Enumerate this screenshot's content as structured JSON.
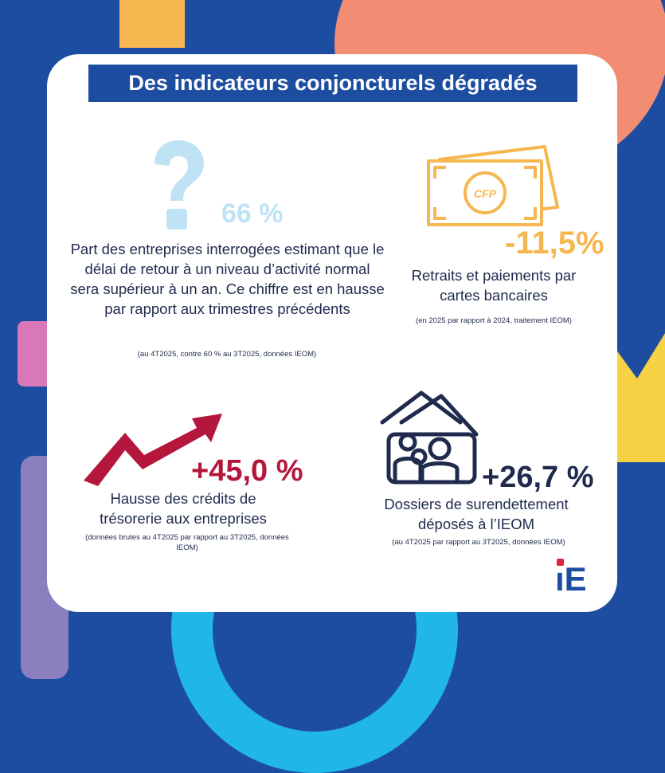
{
  "title": "Des indicateurs conjoncturels dégradés",
  "indicators": [
    {
      "value": "66 %",
      "description": "Part des entreprises interrogées estimant que le délai de retour à un niveau d’activité normal sera supérieur à un an. Ce chiffre est en hausse par rapport aux trimestres précédents",
      "note": "(au 4T2025, contre 60 % au 3T2025, données IEOM)",
      "icon": "question-mark-icon",
      "color": "#bfe3f5"
    },
    {
      "value": "-11,5%",
      "description": "Retraits et paiements par cartes bancaires",
      "note": "(en 2025 par rapport à 2024, traitement IEOM)",
      "icon": "banknote-icon",
      "icon_text": "CFP",
      "color": "#f7b750"
    },
    {
      "value": "+45,0 %",
      "description": "Hausse des crédits de trésorerie aux entreprises",
      "note": "(données brutes au 4T2025 par rapport au 3T2025, données IEOM)",
      "icon": "rising-arrow-icon",
      "color": "#b5173c"
    },
    {
      "value": "+26,7 %",
      "description": "Dossiers de surendettement déposés à l’IEOM",
      "note": "(au 4T2025 par rapport au 3T2025, données IEOM)",
      "icon": "family-house-icon",
      "color": "#1f2a4d"
    }
  ],
  "logo": "iE",
  "colors": {
    "background": "#1d4da1",
    "orange": "#f7b750",
    "salmon": "#f28d74",
    "pink": "#d978b8",
    "purple": "#8c7fc0",
    "yellow": "#f7d245",
    "cyan": "#21b6e8",
    "logo_red": "#e3213b"
  }
}
